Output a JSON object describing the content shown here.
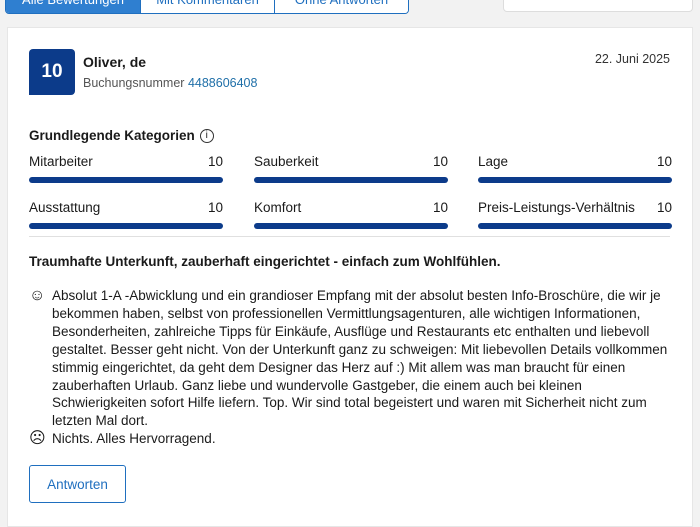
{
  "tabs": [
    "Alle Bewertungen",
    "Mit Kommentaren",
    "Ohne Antworten"
  ],
  "review": {
    "score": "10",
    "name": "Oliver, de",
    "booking_label": "Buchungsnummer",
    "booking_number": "4488606408",
    "date": "22. Juni 2025",
    "categories_title": "Grundlegende Kategorien",
    "categories": [
      {
        "label": "Mitarbeiter",
        "value": "10",
        "fraction": 1.0
      },
      {
        "label": "Sauberkeit",
        "value": "10",
        "fraction": 1.0
      },
      {
        "label": "Lage",
        "value": "10",
        "fraction": 1.0
      },
      {
        "label": "Ausstattung",
        "value": "10",
        "fraction": 1.0
      },
      {
        "label": "Komfort",
        "value": "10",
        "fraction": 1.0
      },
      {
        "label": "Preis-Leistungs-Verhältnis",
        "value": "10",
        "fraction": 1.0
      }
    ],
    "title": "Traumhafte Unterkunft, zauberhaft eingerichtet - einfach zum Wohlfühlen.",
    "positive": "Absolut 1-A -Abwicklung und ein grandioser Empfang mit der absolut besten Info-Broschüre, die wir je bekommen haben, selbst von professionellen Vermittlungsagenturen, alle wichtigen Informationen, Besonderheiten, zahlreiche Tipps für Einkäufe, Ausflüge und Restaurants etc enthalten und liebevoll gestaltet. Besser geht nicht.  Von der Unterkunft ganz zu schweigen: Mit liebevollen Details vollkommen stimmig eingerichtet, da geht dem Designer das Herz auf :) Mit allem was man braucht für einen zauberhaften Urlaub. Ganz liebe und wundervolle Gastgeber, die einem auch bei kleinen Schwierigkeiten sofort Hilfe liefern. Top. Wir sind total begeistert und waren mit Sicherheit nicht zum letzten Mal dort.",
    "negative": "Nichts. Alles Hervorragend.",
    "reply_label": "Antworten"
  },
  "colors": {
    "accent": "#1f6fbf",
    "score_bg": "#0c3b8a"
  }
}
